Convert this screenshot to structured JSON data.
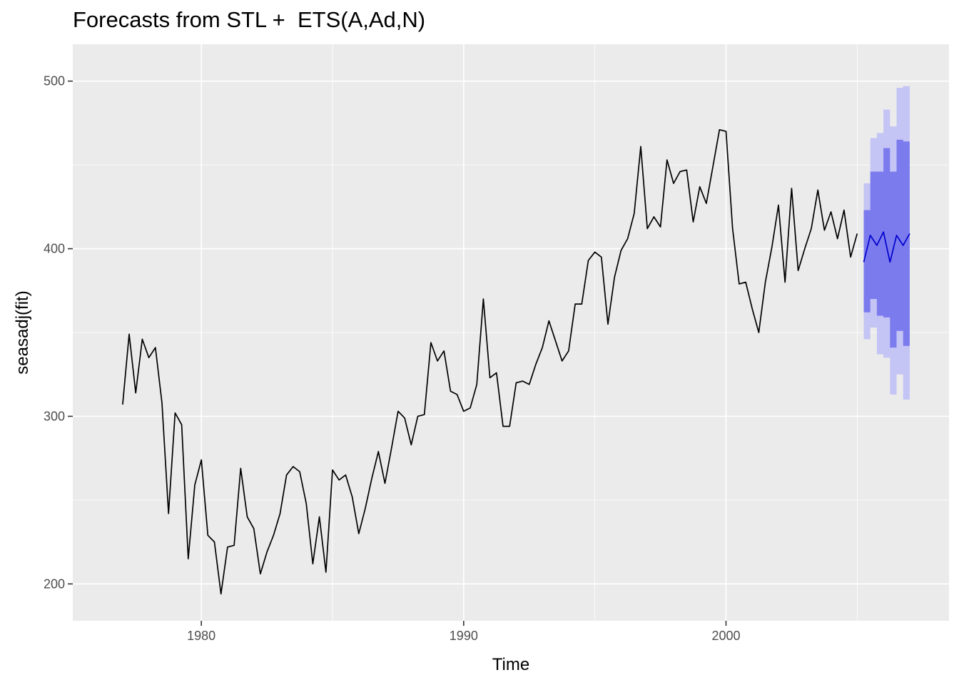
{
  "chart_data": {
    "type": "line",
    "title": "Forecasts from STL +  ETS(A,Ad,N)",
    "xlabel": "Time",
    "ylabel": "seasadj(fit)",
    "xlim": [
      1975.1,
      2008.5
    ],
    "ylim": [
      178,
      522
    ],
    "x_ticks": [
      1980,
      1990,
      2000
    ],
    "y_ticks": [
      200,
      300,
      400,
      500
    ],
    "grid": true,
    "legend": "none",
    "colors": {
      "panel": "#ebebeb",
      "grid": "#ffffff",
      "history": "#000000",
      "forecast": "#0000cc",
      "band80": "#7b7bee",
      "band95": "#c4c4f5"
    },
    "history": {
      "start": 1977,
      "frequency": 4,
      "values": [
        307,
        349,
        314,
        346,
        335,
        341,
        308,
        242,
        302,
        295,
        215,
        259,
        274,
        229,
        225,
        194,
        222,
        223,
        269,
        240,
        233,
        206,
        219,
        229,
        242,
        265,
        270,
        267,
        248,
        212,
        240,
        207,
        268,
        262,
        265,
        252,
        230,
        245,
        263,
        279,
        260,
        281,
        303,
        299,
        283,
        300,
        301,
        344,
        333,
        339,
        315,
        313,
        303,
        305,
        319,
        370,
        323,
        326,
        294,
        294,
        320,
        321,
        319,
        331,
        341,
        357,
        345,
        333,
        339,
        367,
        367,
        393,
        398,
        395,
        355,
        383,
        399,
        406,
        421,
        461,
        412,
        419,
        413,
        453,
        439,
        446,
        447,
        416,
        437,
        427,
        449,
        471,
        470,
        412,
        379,
        380,
        364,
        350,
        380,
        401,
        426,
        380,
        436,
        387,
        400,
        412,
        435,
        411,
        422,
        406,
        423,
        395,
        409
      ]
    },
    "forecast": {
      "start": 2005.25,
      "frequency": 4,
      "mean": [
        392,
        408,
        402,
        410,
        392,
        408,
        402,
        409
      ],
      "lo80": [
        362,
        370,
        360,
        359,
        341,
        351,
        342,
        344
      ],
      "hi80": [
        423,
        446,
        446,
        460,
        446,
        465,
        464,
        473
      ],
      "lo95": [
        346,
        353,
        337,
        335,
        313,
        325,
        310,
        311
      ],
      "hi95": [
        439,
        466,
        469,
        483,
        473,
        496,
        497,
        507
      ]
    }
  }
}
